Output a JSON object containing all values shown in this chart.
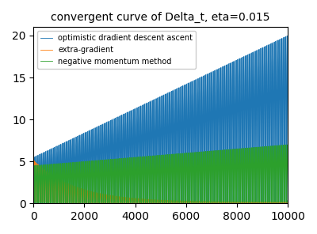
{
  "title": "convergent curve of Delta_t, eta=0.015",
  "legend_labels": [
    "optimistic dradient descent ascent",
    "extra-gradient",
    "negative momentum method"
  ],
  "colors": [
    "#1f77b4",
    "#ff7f0e",
    "#2ca02c"
  ],
  "n_steps": 10000,
  "period": 200,
  "eta": 0.015,
  "xlim": [
    0,
    10000
  ],
  "ylim": [
    0,
    21
  ],
  "figsize": [
    4.0,
    2.96
  ],
  "dpi": 100,
  "linewidth": 0.6
}
